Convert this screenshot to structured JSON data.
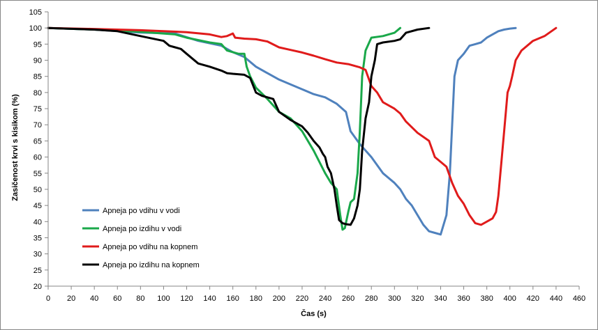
{
  "chart_data": {
    "type": "line",
    "xlabel": "Čas (s)",
    "ylabel": "Zasičenost  krvi s kisikom  (%)",
    "xlim": [
      0,
      460
    ],
    "ylim": [
      20,
      105
    ],
    "xticks": [
      0,
      20,
      40,
      60,
      80,
      100,
      120,
      140,
      160,
      180,
      200,
      220,
      240,
      260,
      280,
      300,
      320,
      340,
      360,
      380,
      400,
      420,
      440,
      460
    ],
    "yticks": [
      20,
      25,
      30,
      35,
      40,
      45,
      50,
      55,
      60,
      65,
      70,
      75,
      80,
      85,
      90,
      95,
      100,
      105
    ],
    "grid": false,
    "legend_position": "bottom-left",
    "series": [
      {
        "name": "Apneja po vdihu v vodi",
        "color": "#4f81bd",
        "x": [
          0,
          40,
          80,
          110,
          130,
          150,
          160,
          170,
          180,
          190,
          200,
          210,
          220,
          230,
          240,
          250,
          258,
          262,
          270,
          280,
          290,
          300,
          305,
          310,
          315,
          320,
          325,
          330,
          335,
          340,
          345,
          348,
          350,
          352,
          355,
          360,
          365,
          370,
          375,
          380,
          385,
          390,
          395,
          400,
          405
        ],
        "y": [
          100,
          99.5,
          98.6,
          98.3,
          96,
          94.5,
          92.5,
          91,
          88,
          86,
          84,
          82.5,
          81,
          79.5,
          78.5,
          76.5,
          74,
          68,
          64,
          60,
          55,
          52,
          50,
          47,
          45,
          42,
          39,
          37,
          36.5,
          36,
          42,
          55,
          70,
          85,
          90,
          92,
          94.5,
          95,
          95.5,
          97,
          98,
          99,
          99.5,
          99.8,
          100
        ]
      },
      {
        "name": "Apneja po izdihu v vodi",
        "color": "#1aa84a",
        "x": [
          0,
          40,
          80,
          110,
          120,
          140,
          150,
          155,
          160,
          165,
          170,
          172,
          175,
          180,
          190,
          200,
          210,
          220,
          230,
          240,
          245,
          250,
          253,
          255,
          257,
          260,
          262,
          265,
          268,
          270,
          272,
          275,
          280,
          290,
          300,
          305
        ],
        "y": [
          100,
          99.5,
          98.8,
          98,
          97,
          95.5,
          95,
          93,
          92.5,
          92,
          92,
          88,
          85,
          81.5,
          78,
          74,
          72,
          68,
          62,
          55,
          52,
          50,
          42,
          37.5,
          38,
          43,
          46,
          47,
          55,
          68,
          85,
          93,
          97,
          97.5,
          98.5,
          100
        ]
      },
      {
        "name": "Apneja po vdihu na kopnem",
        "color": "#e01b1b",
        "x": [
          0,
          40,
          80,
          120,
          140,
          150,
          155,
          160,
          162,
          170,
          180,
          190,
          200,
          210,
          220,
          230,
          240,
          250,
          260,
          270,
          275,
          280,
          285,
          290,
          300,
          305,
          310,
          320,
          330,
          335,
          340,
          345,
          350,
          355,
          360,
          365,
          370,
          375,
          380,
          385,
          388,
          390,
          393,
          395,
          398,
          400,
          402,
          405,
          410,
          420,
          430,
          440
        ],
        "y": [
          100,
          99.7,
          99.3,
          98.7,
          98,
          97.2,
          97.5,
          98.3,
          97,
          96.7,
          96.5,
          95.8,
          94,
          93.2,
          92.4,
          91.4,
          90.3,
          89.3,
          88.8,
          87.8,
          87,
          82,
          80,
          77,
          75,
          73.5,
          71,
          67.5,
          65,
          60,
          58.5,
          57,
          52,
          48,
          45.5,
          42,
          39.5,
          39,
          40,
          41,
          43,
          48,
          60,
          68,
          80,
          82,
          85,
          90,
          93,
          96,
          97.5,
          100
        ]
      },
      {
        "name": "Apneja po izdihu na kopnem",
        "color": "#000000",
        "x": [
          0,
          40,
          60,
          80,
          100,
          105,
          110,
          115,
          120,
          130,
          140,
          150,
          155,
          160,
          170,
          175,
          180,
          185,
          195,
          200,
          210,
          220,
          225,
          230,
          235,
          238,
          240,
          242,
          245,
          248,
          250,
          252,
          255,
          258,
          262,
          265,
          268,
          270,
          272,
          275,
          278,
          280,
          283,
          285,
          290,
          300,
          305,
          310,
          320,
          330
        ],
        "y": [
          100,
          99.5,
          99,
          97.5,
          96,
          94.5,
          94,
          93.5,
          92,
          89,
          88,
          86.8,
          86,
          85.8,
          85.5,
          84.5,
          80,
          79,
          78,
          74,
          71.5,
          69.5,
          67.5,
          65,
          63,
          61,
          60,
          57,
          55,
          50,
          45,
          40.5,
          39.5,
          39.2,
          39,
          41,
          45,
          50,
          62,
          72,
          77,
          85,
          90,
          95,
          95.5,
          96,
          96.5,
          98.5,
          99.5,
          100
        ]
      }
    ]
  }
}
